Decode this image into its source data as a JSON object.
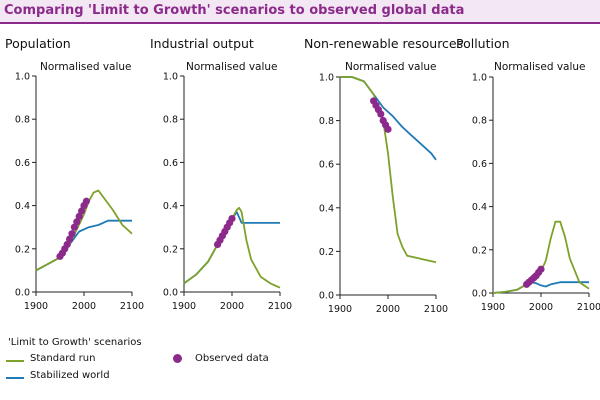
{
  "title": "Comparing 'Limit to Growth' scenarios to observed global data",
  "colors": {
    "title_text": "#8c2a8c",
    "title_bg": "#f3e7f3",
    "standard_run": "#7ea229",
    "stabilized_world": "#1f7ab5",
    "observed": "#8c2a8c",
    "axis": "#222222"
  },
  "legend": {
    "heading": "'Limit to Growth' scenarios",
    "standard_run": "Standard run",
    "stabilized_world": "Stabilized world",
    "observed": "Observed data"
  },
  "chart_data": [
    {
      "type": "line",
      "title": "Population",
      "ylabel": "Normalised value",
      "xlim": [
        1900,
        2100
      ],
      "ylim": [
        0,
        1.0
      ],
      "xticks": [
        1900,
        2000,
        2100
      ],
      "yticks": [
        0.0,
        0.2,
        0.4,
        0.6,
        0.8,
        1.0
      ],
      "series": [
        {
          "name": "Standard run",
          "x": [
            1900,
            1925,
            1950,
            1970,
            2000,
            2010,
            2020,
            2030,
            2040,
            2060,
            2080,
            2100
          ],
          "y": [
            0.1,
            0.13,
            0.16,
            0.22,
            0.36,
            0.42,
            0.46,
            0.47,
            0.44,
            0.38,
            0.31,
            0.27
          ]
        },
        {
          "name": "Stabilized world",
          "x": [
            1900,
            1925,
            1950,
            1970,
            1990,
            2010,
            2030,
            2050,
            2070,
            2100
          ],
          "y": [
            0.1,
            0.13,
            0.16,
            0.22,
            0.28,
            0.3,
            0.31,
            0.33,
            0.33,
            0.33
          ]
        },
        {
          "name": "Observed data",
          "x": [
            1950,
            1955,
            1960,
            1965,
            1970,
            1975,
            1980,
            1985,
            1990,
            1995,
            2000,
            2005
          ],
          "y": [
            0.165,
            0.18,
            0.2,
            0.22,
            0.245,
            0.27,
            0.3,
            0.325,
            0.35,
            0.375,
            0.4,
            0.42
          ]
        }
      ]
    },
    {
      "type": "line",
      "title": "Industrial output",
      "ylabel": "Normalised value",
      "xlim": [
        1900,
        2100
      ],
      "ylim": [
        0,
        1.0
      ],
      "xticks": [
        1900,
        2000,
        2100
      ],
      "yticks": [
        0.0,
        0.2,
        0.4,
        0.6,
        0.8,
        1.0
      ],
      "series": [
        {
          "name": "Standard run",
          "x": [
            1900,
            1925,
            1950,
            1970,
            1990,
            2000,
            2010,
            2015,
            2020,
            2030,
            2040,
            2060,
            2080,
            2100
          ],
          "y": [
            0.04,
            0.08,
            0.14,
            0.22,
            0.3,
            0.34,
            0.38,
            0.39,
            0.37,
            0.24,
            0.15,
            0.07,
            0.04,
            0.02
          ]
        },
        {
          "name": "Stabilized world",
          "x": [
            1900,
            1925,
            1950,
            1970,
            1990,
            2000,
            2010,
            2020,
            2040,
            2100
          ],
          "y": [
            0.04,
            0.08,
            0.14,
            0.22,
            0.3,
            0.34,
            0.37,
            0.32,
            0.32,
            0.32
          ]
        },
        {
          "name": "Observed data",
          "x": [
            1970,
            1975,
            1980,
            1985,
            1990,
            1995,
            2000
          ],
          "y": [
            0.22,
            0.24,
            0.26,
            0.28,
            0.3,
            0.32,
            0.34
          ]
        }
      ]
    },
    {
      "type": "line",
      "title": "Non-renewable resources",
      "ylabel": "Normalised value",
      "xlim": [
        1900,
        2100
      ],
      "ylim": [
        0,
        1.0
      ],
      "xticks": [
        1900,
        2000,
        2100
      ],
      "yticks": [
        0.0,
        0.2,
        0.4,
        0.6,
        0.8,
        1.0
      ],
      "series": [
        {
          "name": "Standard run",
          "x": [
            1900,
            1925,
            1950,
            1970,
            1990,
            2000,
            2010,
            2020,
            2030,
            2040,
            2060,
            2080,
            2100
          ],
          "y": [
            1.0,
            1.0,
            0.98,
            0.92,
            0.8,
            0.65,
            0.45,
            0.28,
            0.22,
            0.18,
            0.17,
            0.16,
            0.15
          ]
        },
        {
          "name": "Stabilized world",
          "x": [
            1900,
            1925,
            1950,
            1970,
            1990,
            2010,
            2030,
            2050,
            2070,
            2090,
            2100
          ],
          "y": [
            1.0,
            1.0,
            0.98,
            0.92,
            0.86,
            0.82,
            0.77,
            0.73,
            0.69,
            0.65,
            0.62
          ]
        },
        {
          "name": "Observed data",
          "x": [
            1970,
            1975,
            1980,
            1985,
            1990,
            1995,
            2000
          ],
          "y": [
            0.89,
            0.87,
            0.85,
            0.83,
            0.8,
            0.78,
            0.76
          ]
        }
      ]
    },
    {
      "type": "line",
      "title": "Pollution",
      "ylabel": "Normalised value",
      "xlim": [
        1900,
        2100
      ],
      "ylim": [
        0,
        1.0
      ],
      "xticks": [
        1900,
        2000,
        2100
      ],
      "yticks": [
        0.0,
        0.2,
        0.4,
        0.6,
        0.8,
        1.0
      ],
      "series": [
        {
          "name": "Standard run",
          "x": [
            1900,
            1925,
            1950,
            1970,
            1990,
            2000,
            2010,
            2020,
            2030,
            2040,
            2050,
            2060,
            2080,
            2100
          ],
          "y": [
            0.0,
            0.005,
            0.015,
            0.04,
            0.07,
            0.1,
            0.15,
            0.25,
            0.33,
            0.33,
            0.26,
            0.16,
            0.05,
            0.02
          ]
        },
        {
          "name": "Stabilized world",
          "x": [
            1900,
            1925,
            1950,
            1970,
            1980,
            1990,
            2000,
            2010,
            2020,
            2040,
            2060,
            2100
          ],
          "y": [
            0.0,
            0.005,
            0.015,
            0.04,
            0.05,
            0.045,
            0.035,
            0.03,
            0.04,
            0.05,
            0.05,
            0.05
          ]
        },
        {
          "name": "Observed data",
          "x": [
            1970,
            1975,
            1980,
            1985,
            1990,
            1995,
            2000
          ],
          "y": [
            0.04,
            0.05,
            0.06,
            0.07,
            0.08,
            0.095,
            0.11
          ]
        }
      ]
    }
  ]
}
